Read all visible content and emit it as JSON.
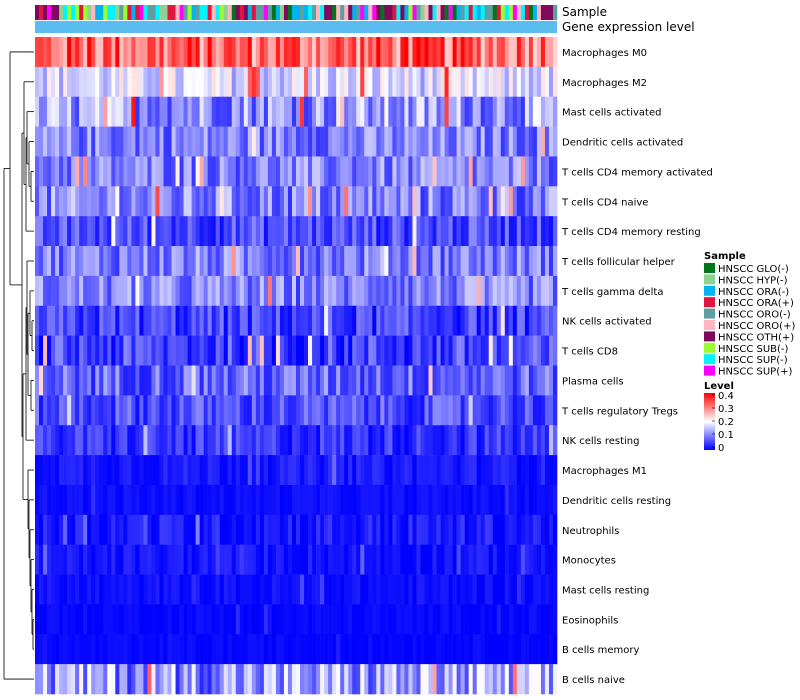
{
  "chart_data": {
    "type": "heatmap",
    "title": "",
    "annotation_tracks": [
      "Sample",
      "Gene expression level"
    ],
    "rows": [
      {
        "name": "Macrophages M0",
        "mean": 0.32,
        "spread": 0.09
      },
      {
        "name": "Macrophages M2",
        "mean": 0.17,
        "spread": 0.06
      },
      {
        "name": "Mast cells activated",
        "mean": 0.12,
        "spread": 0.08
      },
      {
        "name": "Dendritic cells activated",
        "mean": 0.1,
        "spread": 0.06
      },
      {
        "name": "T cells CD4 memory activated",
        "mean": 0.1,
        "spread": 0.06
      },
      {
        "name": "T cells CD4 naive",
        "mean": 0.1,
        "spread": 0.07
      },
      {
        "name": "T cells CD4 memory resting",
        "mean": 0.06,
        "spread": 0.05
      },
      {
        "name": "T cells follicular helper",
        "mean": 0.1,
        "spread": 0.06
      },
      {
        "name": "T cells gamma delta",
        "mean": 0.1,
        "spread": 0.06
      },
      {
        "name": "NK cells activated",
        "mean": 0.05,
        "spread": 0.05
      },
      {
        "name": "T cells CD8",
        "mean": 0.05,
        "spread": 0.06
      },
      {
        "name": "Plasma cells",
        "mean": 0.08,
        "spread": 0.06
      },
      {
        "name": "T cells regulatory  Tregs",
        "mean": 0.06,
        "spread": 0.05
      },
      {
        "name": "NK cells resting",
        "mean": 0.04,
        "spread": 0.04
      },
      {
        "name": "Macrophages M1",
        "mean": 0.02,
        "spread": 0.02
      },
      {
        "name": "Dendritic cells resting",
        "mean": 0.01,
        "spread": 0.01
      },
      {
        "name": "Neutrophils",
        "mean": 0.02,
        "spread": 0.03
      },
      {
        "name": "Monocytes",
        "mean": 0.015,
        "spread": 0.02
      },
      {
        "name": "Mast cells resting",
        "mean": 0.01,
        "spread": 0.015
      },
      {
        "name": "Eosinophils",
        "mean": 0.005,
        "spread": 0.01
      },
      {
        "name": "B cells memory",
        "mean": 0.005,
        "spread": 0.008
      },
      {
        "name": "B cells naive",
        "mean": 0.12,
        "spread": 0.09
      }
    ],
    "n_samples": 130,
    "sample_groups": [
      {
        "name": "HNSCC GLO(-)",
        "color": "#00761A"
      },
      {
        "name": "HNSCC HYP(-)",
        "color": "#8FD18F"
      },
      {
        "name": "HNSCC ORA(-)",
        "color": "#00B2EE"
      },
      {
        "name": "HNSCC ORA(+)",
        "color": "#E0163F"
      },
      {
        "name": "HNSCC ORO(-)",
        "color": "#5F9EA0"
      },
      {
        "name": "HNSCC ORO(+)",
        "color": "#FFB6C1"
      },
      {
        "name": "HNSCC OTH(+)",
        "color": "#7F0A5B"
      },
      {
        "name": "HNSCC SUB(-)",
        "color": "#9BFF2F"
      },
      {
        "name": "HNSCC SUP(-)",
        "color": "#00F5FF"
      },
      {
        "name": "HNSCC SUP(+)",
        "color": "#FF00FF"
      }
    ],
    "gene_expression_level_color": "#5BBCEF",
    "legend": {
      "sample_title": "Sample",
      "level_title": "Level",
      "level_ticks": [
        "0.4",
        "0.3",
        "0.2",
        "0.1",
        "0"
      ],
      "level_range": [
        0,
        0.4
      ],
      "placement": "right"
    },
    "color_scale": {
      "low": "#0000FF",
      "mid": "#FFFFFF",
      "high": "#FF0000",
      "mid_value": 0.2
    }
  }
}
